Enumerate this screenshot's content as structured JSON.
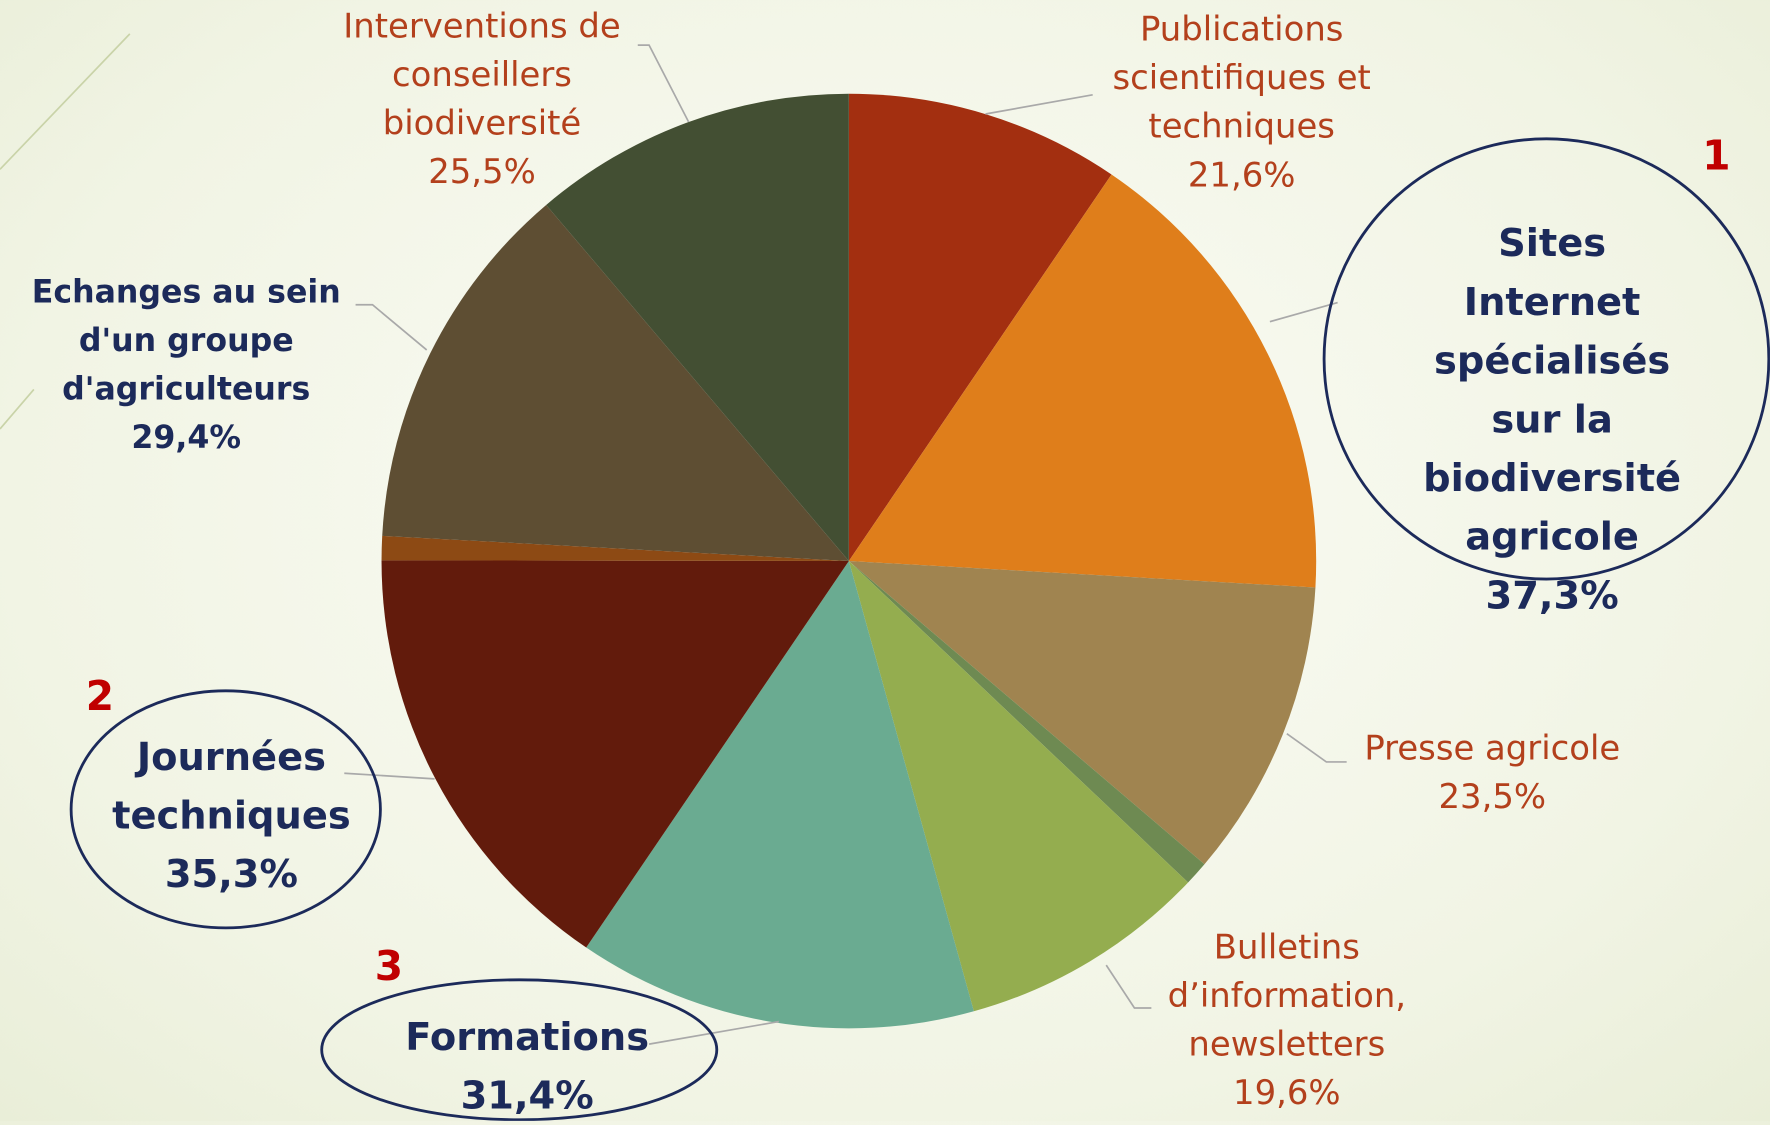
{
  "chart_data": {
    "type": "pie",
    "categories": [
      "Publications\nscientifiques et\ntechniques",
      "Sites Internet\nspécialisés sur la\nbiodiversité\nagricole",
      "Presse agricole",
      null,
      "Bulletins\nd’information,\nnewsletters",
      "Formations",
      "Journées\ntechniques",
      null,
      "Echanges au sein\nd'un groupe\nd'agriculteurs",
      "Interventions de\nconseillers\nbiodiversité"
    ],
    "values": [
      21.6,
      37.3,
      23.5,
      1.9,
      19.6,
      31.4,
      35.3,
      1.9,
      29.4,
      25.5
    ],
    "value_labels": [
      "21,6%",
      "37,3%",
      "23,5%",
      null,
      "19,6%",
      "31,4%",
      "35,3%",
      null,
      "29,4%",
      "25,5%"
    ],
    "colors": [
      "#a32f10",
      "#df7e1b",
      "#a08450",
      "#6e8a52",
      "#94ad4f",
      "#6aab91",
      "#621b0c",
      "#8d4a14",
      "#5e4e33",
      "#434f33"
    ],
    "annotations": [
      "1",
      "2",
      "3"
    ]
  }
}
